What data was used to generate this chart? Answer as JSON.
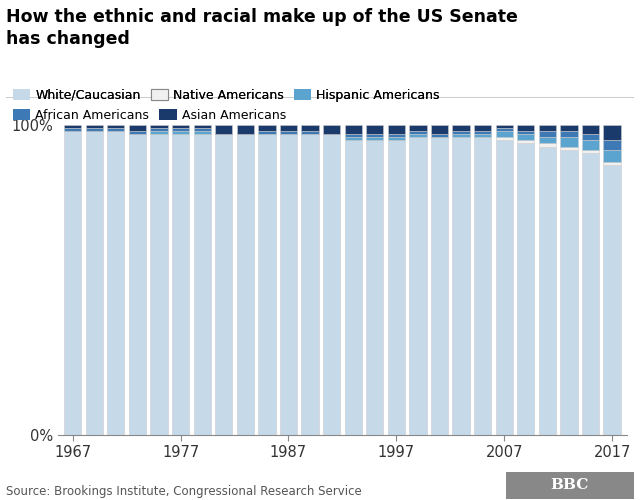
{
  "title": "How the ethnic and racial make up of the US Senate\nhas changed",
  "source": "Source: Brookings Institute, Congressional Research Service",
  "years": [
    1967,
    1969,
    1971,
    1973,
    1975,
    1977,
    1979,
    1981,
    1983,
    1985,
    1987,
    1989,
    1991,
    1993,
    1995,
    1997,
    1999,
    2001,
    2003,
    2005,
    2007,
    2009,
    2011,
    2013,
    2015,
    2017
  ],
  "white": [
    98,
    98,
    98,
    97,
    97,
    97,
    97,
    97,
    97,
    97,
    97,
    97,
    97,
    95,
    95,
    95,
    96,
    96,
    96,
    96,
    95,
    94,
    93,
    92,
    91,
    87
  ],
  "native": [
    0,
    0,
    0,
    0,
    0,
    0,
    0,
    0,
    0,
    0,
    0,
    0,
    0,
    0,
    0,
    0,
    0,
    0,
    0,
    0,
    1,
    1,
    1,
    1,
    1,
    1
  ],
  "hispanic": [
    0,
    0,
    0,
    0,
    1,
    1,
    1,
    0,
    0,
    0,
    0,
    0,
    0,
    1,
    1,
    1,
    1,
    0,
    1,
    1,
    2,
    2,
    2,
    3,
    3,
    4
  ],
  "african": [
    1,
    1,
    1,
    1,
    1,
    1,
    1,
    0,
    0,
    1,
    1,
    1,
    0,
    1,
    1,
    1,
    1,
    1,
    1,
    1,
    1,
    1,
    2,
    2,
    2,
    3
  ],
  "asian": [
    1,
    1,
    1,
    2,
    1,
    1,
    1,
    3,
    3,
    2,
    2,
    2,
    3,
    3,
    3,
    3,
    2,
    3,
    2,
    2,
    1,
    2,
    2,
    2,
    3,
    5
  ],
  "colors": {
    "white": "#c5d9e8",
    "native": "#f0f0f0",
    "hispanic": "#5ba4cf",
    "african": "#3d7ab5",
    "asian": "#1a3a6b"
  },
  "bar_edgecolor": "#cccccc",
  "background_color": "#ffffff",
  "legend_labels": [
    "White/Caucasian",
    "Native Americans",
    "Hispanic Americans",
    "African Americans",
    "Asian Americans"
  ],
  "legend_colors": [
    "#c5d9e8",
    "#f0f0f0",
    "#5ba4cf",
    "#3d7ab5",
    "#1a3a6b"
  ],
  "yticks": [
    0,
    100
  ],
  "ylabel_ticks": [
    "0%",
    "100%"
  ],
  "bar_width": 0.8,
  "decade_years": [
    1967,
    1977,
    1987,
    1997,
    2007,
    2017
  ]
}
